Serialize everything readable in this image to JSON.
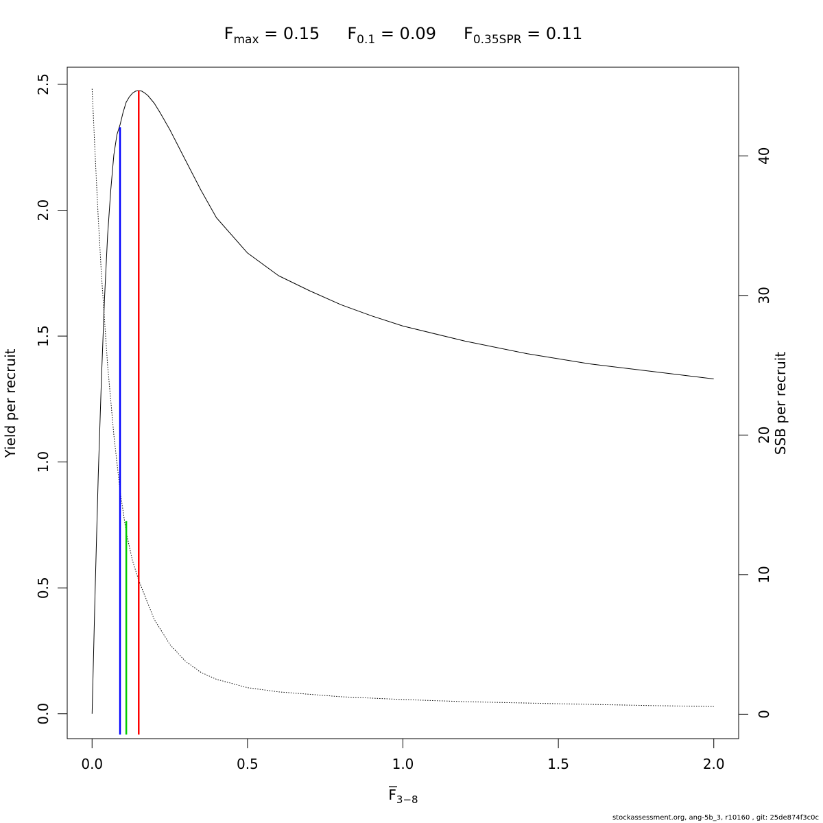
{
  "chart_data": {
    "type": "line",
    "title_parts": [
      {
        "main": "F",
        "sub": "max",
        "value": " = 0.15"
      },
      {
        "main": "F",
        "sub": "0.1",
        "value": " = 0.09"
      },
      {
        "main": "F",
        "sub": "0.35SPR",
        "value": " = 0.11"
      }
    ],
    "xlabel": {
      "main": "F",
      "sub": "3−8",
      "overline": true
    },
    "ylabel": "Yield per recruit",
    "y2label": "SSB per recruit",
    "xlim": [
      -0.08,
      2.08
    ],
    "ylim": [
      -0.0988,
      2.568
    ],
    "y2lim": [
      -1.75,
      46.35
    ],
    "x_ticks": [
      0.0,
      0.5,
      1.0,
      1.5,
      2.0
    ],
    "x_tick_labels": [
      "0.0",
      "0.5",
      "1.0",
      "1.5",
      "2.0"
    ],
    "y_ticks": [
      0.0,
      0.5,
      1.0,
      1.5,
      2.0,
      2.5
    ],
    "y_tick_labels": [
      "0.0",
      "0.5",
      "1.0",
      "1.5",
      "2.0",
      "2.5"
    ],
    "y2_ticks": [
      0,
      10,
      20,
      30,
      40
    ],
    "y2_tick_labels": [
      "0",
      "10",
      "20",
      "30",
      "40"
    ],
    "series": [
      {
        "axis": "left",
        "style": "solid",
        "x": [
          0,
          0.01,
          0.02,
          0.03,
          0.04,
          0.05,
          0.06,
          0.07,
          0.08,
          0.09,
          0.1,
          0.11,
          0.12,
          0.13,
          0.14,
          0.15,
          0.16,
          0.17,
          0.18,
          0.2,
          0.22,
          0.25,
          0.3,
          0.35,
          0.4,
          0.5,
          0.6,
          0.7,
          0.8,
          0.9,
          1.0,
          1.2,
          1.4,
          1.6,
          1.8,
          2.0
        ],
        "y": [
          0.0,
          0.5,
          0.95,
          1.33,
          1.65,
          1.9,
          2.08,
          2.22,
          2.3,
          2.34,
          2.39,
          2.43,
          2.45,
          2.465,
          2.473,
          2.475,
          2.473,
          2.465,
          2.455,
          2.425,
          2.385,
          2.32,
          2.2,
          2.08,
          1.97,
          1.83,
          1.74,
          1.68,
          1.625,
          1.58,
          1.54,
          1.48,
          1.43,
          1.39,
          1.36,
          1.33
        ]
      },
      {
        "axis": "right",
        "style": "dotted",
        "x": [
          0,
          0.01,
          0.02,
          0.03,
          0.05,
          0.07,
          0.09,
          0.11,
          0.13,
          0.15,
          0.2,
          0.25,
          0.3,
          0.35,
          0.4,
          0.5,
          0.6,
          0.8,
          1.0,
          1.2,
          1.5,
          1.8,
          2.0
        ],
        "y": [
          44.8,
          40.0,
          35.5,
          31.5,
          25.0,
          20.0,
          16.0,
          13.0,
          11.0,
          9.6,
          6.8,
          5.0,
          3.8,
          3.0,
          2.5,
          1.9,
          1.6,
          1.25,
          1.05,
          0.9,
          0.75,
          0.62,
          0.55
        ]
      }
    ],
    "vlines": [
      {
        "name": "F0.1",
        "x": 0.09,
        "y_top": 2.33,
        "color": "#0000ff"
      },
      {
        "name": "F0.35SPR",
        "x": 0.11,
        "y_top": 0.765,
        "color": "#00cc00"
      },
      {
        "name": "Fmax",
        "x": 0.15,
        "y_top": 2.475,
        "color": "#ff0000"
      }
    ],
    "grid": false
  },
  "footer": "stockassessment.org, ang-5b_3, r10160 , git: 25de874f3c0c"
}
